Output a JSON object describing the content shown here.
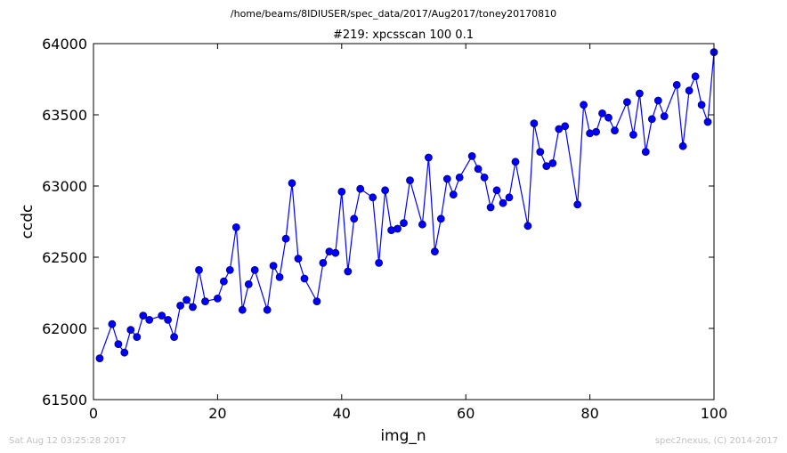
{
  "chart_data": {
    "type": "line",
    "suptitle": "/home/beams/8IDIUSER/spec_data/2017/Aug2017/toney20170810",
    "title": "#219: xpcsscan 100 0.1",
    "xlabel": "img_n",
    "ylabel": "ccdc",
    "xlim": [
      0,
      100
    ],
    "ylim": [
      61500,
      64000
    ],
    "xticks": [
      0,
      20,
      40,
      60,
      80,
      100
    ],
    "yticks": [
      61500,
      62000,
      62500,
      63000,
      63500,
      64000
    ],
    "grid": false,
    "color": "#0000ff",
    "marker": "circle",
    "x": [
      1,
      3,
      4,
      5,
      6,
      7,
      8,
      9,
      11,
      12,
      13,
      14,
      15,
      16,
      17,
      18,
      20,
      21,
      22,
      23,
      24,
      25,
      26,
      28,
      29,
      30,
      31,
      32,
      33,
      34,
      36,
      37,
      38,
      39,
      40,
      41,
      42,
      43,
      45,
      46,
      47,
      48,
      49,
      50,
      51,
      53,
      54,
      55,
      56,
      57,
      58,
      59,
      61,
      62,
      63,
      64,
      65,
      66,
      67,
      68,
      70,
      71,
      72,
      73,
      74,
      75,
      76,
      78,
      79,
      80,
      81,
      82,
      83,
      84,
      86,
      87,
      88,
      89,
      90,
      91,
      92,
      94,
      95,
      96,
      97,
      98,
      99,
      100
    ],
    "y": [
      61790,
      62030,
      61890,
      61830,
      61990,
      61940,
      62090,
      62060,
      62090,
      62060,
      61940,
      62160,
      62200,
      62150,
      62410,
      62190,
      62210,
      62330,
      62410,
      62710,
      62130,
      62310,
      62410,
      62130,
      62440,
      62360,
      62630,
      63020,
      62490,
      62350,
      62190,
      62460,
      62540,
      62530,
      62960,
      62400,
      62770,
      62980,
      62920,
      62460,
      62970,
      62690,
      62700,
      62740,
      63040,
      62730,
      63200,
      62540,
      62770,
      63050,
      62940,
      63060,
      63210,
      63120,
      63060,
      62850,
      62970,
      62880,
      62920,
      63170,
      62720,
      63440,
      63240,
      63140,
      63160,
      63400,
      63420,
      62870,
      63570,
      63370,
      63380,
      63510,
      63480,
      63390,
      63590,
      63360,
      63650,
      63240,
      63470,
      63600,
      63490,
      63710,
      63280,
      63670,
      63770,
      63570,
      63450,
      63940
    ]
  },
  "footer": {
    "timestamp": "Sat Aug 12 03:25:28 2017",
    "credit": "spec2nexus, (C) 2014-2017"
  }
}
